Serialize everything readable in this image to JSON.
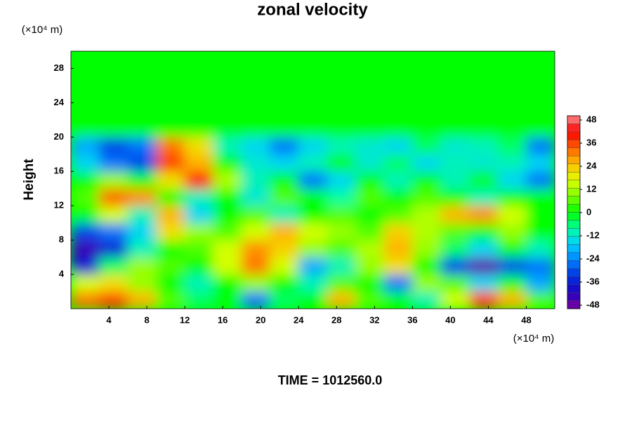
{
  "chart_data": {
    "type": "heatmap",
    "title": "zonal velocity",
    "y_label": "Height",
    "x_unit": "(×10⁴ m)",
    "y_unit": "(×10⁴ m)",
    "annotation": "TIME = 1012560.0",
    "x": [
      1.5,
      4.5,
      7.5,
      10.5,
      13.5,
      16.5,
      19.5,
      22.5,
      25.5,
      28.5,
      31.5,
      34.5,
      37.5,
      40.5,
      43.5,
      46.5,
      49.5
    ],
    "y": [
      1,
      3,
      5,
      7,
      9,
      11,
      13,
      15,
      17,
      19,
      21,
      23,
      25,
      27,
      29
    ],
    "z": [
      [
        30,
        35,
        25,
        5,
        -5,
        0,
        -25,
        -5,
        0,
        25,
        5,
        0,
        -10,
        15,
        35,
        25,
        5
      ],
      [
        15,
        20,
        10,
        0,
        -10,
        0,
        10,
        0,
        -10,
        5,
        0,
        -25,
        10,
        5,
        -15,
        0,
        -20
      ],
      [
        -35,
        -5,
        10,
        5,
        0,
        15,
        30,
        15,
        -20,
        -10,
        10,
        20,
        0,
        -30,
        -45,
        -30,
        -25
      ],
      [
        -42,
        -35,
        -10,
        0,
        5,
        15,
        28,
        22,
        10,
        5,
        12,
        25,
        10,
        -5,
        -15,
        0,
        -10
      ],
      [
        -30,
        -25,
        -15,
        20,
        10,
        5,
        15,
        25,
        15,
        10,
        5,
        22,
        12,
        5,
        0,
        10,
        0
      ],
      [
        0,
        15,
        -10,
        25,
        -15,
        0,
        5,
        -10,
        0,
        5,
        0,
        5,
        12,
        25,
        28,
        15,
        0
      ],
      [
        5,
        32,
        28,
        0,
        -10,
        0,
        -12,
        5,
        0,
        -8,
        5,
        0,
        5,
        0,
        -10,
        0,
        0
      ],
      [
        0,
        10,
        0,
        20,
        40,
        12,
        -10,
        0,
        -25,
        -15,
        0,
        -10,
        0,
        -10,
        0,
        -15,
        -25
      ],
      [
        -15,
        -25,
        -30,
        35,
        25,
        0,
        -12,
        -15,
        -10,
        0,
        -12,
        -5,
        -15,
        -10,
        -12,
        -10,
        -15
      ],
      [
        -20,
        -30,
        -25,
        30,
        20,
        -10,
        -15,
        -25,
        -15,
        -10,
        -12,
        -15,
        -5,
        -12,
        -10,
        -5,
        -25
      ],
      [
        0,
        0,
        0,
        0,
        0,
        0,
        0,
        0,
        0,
        0,
        0,
        0,
        0,
        0,
        0,
        0,
        0
      ],
      [
        0,
        0,
        0,
        0,
        0,
        0,
        0,
        0,
        0,
        0,
        0,
        0,
        0,
        0,
        0,
        0,
        0
      ],
      [
        0,
        0,
        0,
        0,
        0,
        0,
        0,
        0,
        0,
        0,
        0,
        0,
        0,
        0,
        0,
        0,
        0
      ],
      [
        0,
        0,
        0,
        0,
        0,
        0,
        0,
        0,
        0,
        0,
        0,
        0,
        0,
        0,
        0,
        0,
        0
      ],
      [
        0,
        0,
        0,
        0,
        0,
        0,
        0,
        0,
        0,
        0,
        0,
        0,
        0,
        0,
        0,
        0,
        0
      ]
    ],
    "xlim": [
      0,
      51
    ],
    "ylim": [
      0,
      30
    ],
    "xticks": [
      4,
      8,
      12,
      16,
      20,
      24,
      28,
      32,
      36,
      40,
      44,
      48
    ],
    "yticks": [
      4,
      8,
      12,
      16,
      20,
      24,
      28
    ],
    "colorbar_lim": [
      -48,
      48
    ],
    "colorbar_ticks": [
      48,
      36,
      24,
      12,
      0,
      -12,
      -24,
      -36,
      -48
    ],
    "colorbar_step": 4,
    "colorscale": [
      {
        "value": -48,
        "color": "#8000a0"
      },
      {
        "value": -40,
        "color": "#2000c0"
      },
      {
        "value": -32,
        "color": "#0030e0"
      },
      {
        "value": -24,
        "color": "#0080ff"
      },
      {
        "value": -16,
        "color": "#00d0ff"
      },
      {
        "value": -8,
        "color": "#00ffa0"
      },
      {
        "value": 0,
        "color": "#00ff00"
      },
      {
        "value": 8,
        "color": "#80ff00"
      },
      {
        "value": 16,
        "color": "#e0ff00"
      },
      {
        "value": 24,
        "color": "#ffc000"
      },
      {
        "value": 32,
        "color": "#ff6000"
      },
      {
        "value": 40,
        "color": "#ff0000"
      },
      {
        "value": 48,
        "color": "#ff9090"
      }
    ]
  }
}
